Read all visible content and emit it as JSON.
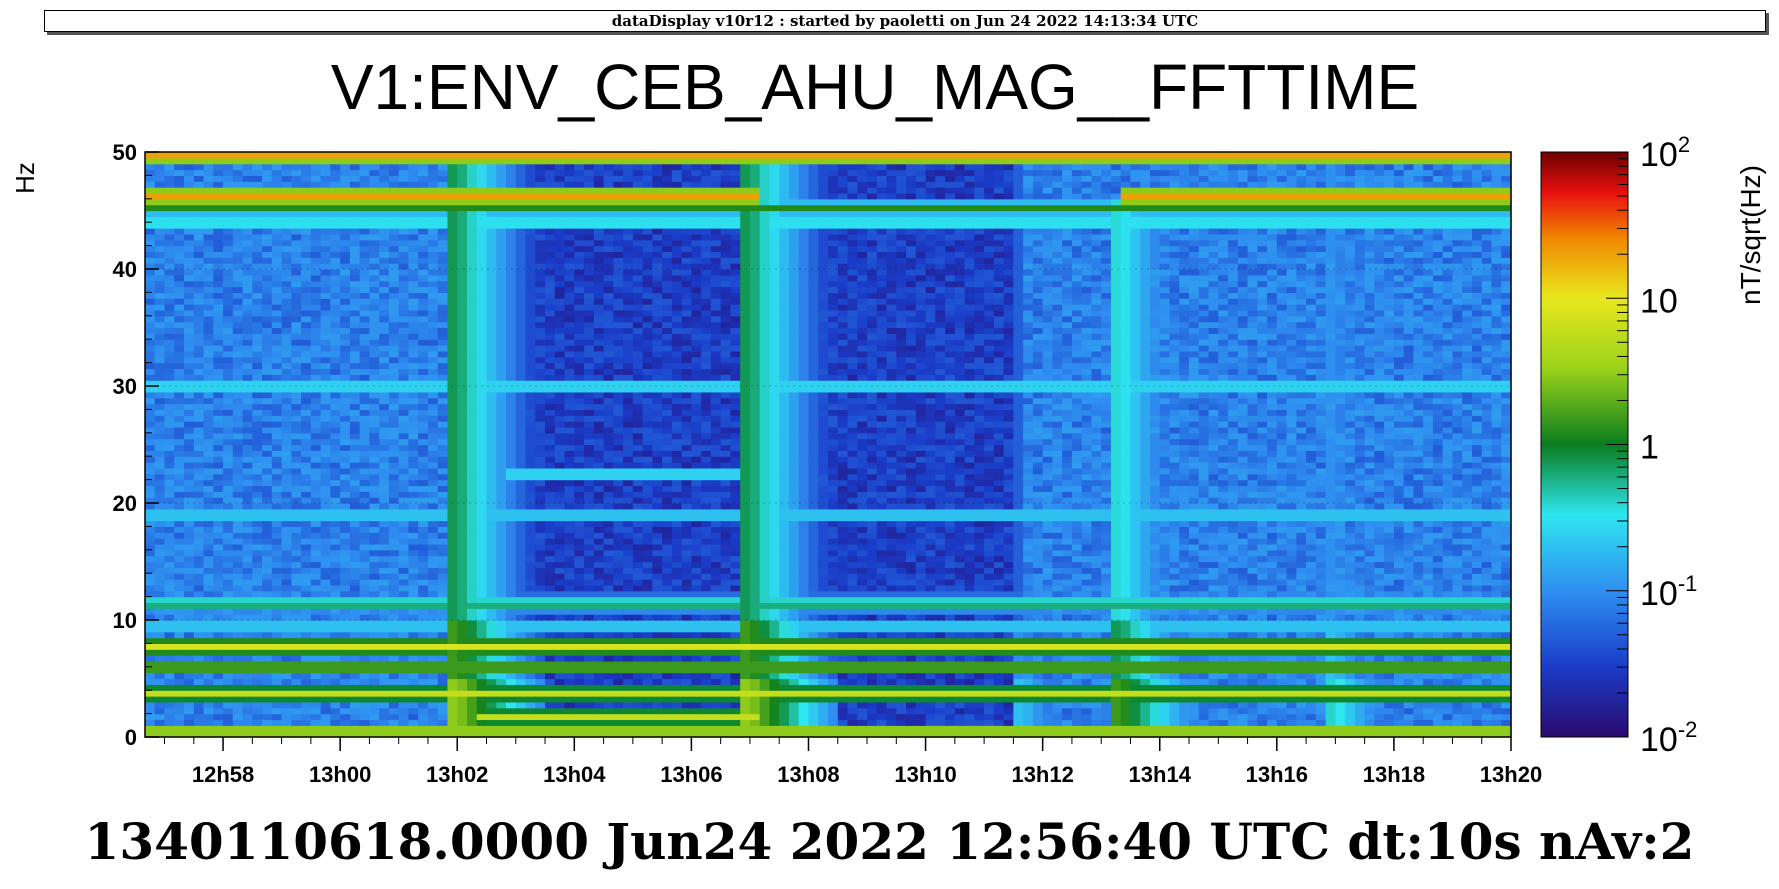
{
  "header": {
    "banner": "dataDisplay v10r12 : started by paoletti on Jun 24 2022 14:13:34 UTC"
  },
  "footer": {
    "info": "1340110618.0000 Jun24 2022 12:56:40 UTC dt:10s nAv:2"
  },
  "colors": {
    "background": "#ffffff",
    "text": "#000000",
    "palette": [
      "#2a0a6e",
      "#1a3cc8",
      "#2f8ff0",
      "#2ee6f0",
      "#0a7d1e",
      "#e8e81e",
      "#f08a00",
      "#e81010",
      "#6e0000"
    ]
  },
  "chart_data": {
    "type": "heatmap",
    "title": "V1:ENV_CEB_AHU_MAG__FFTTIME",
    "ylabel": "Hz",
    "xlabel": "",
    "zlabel": "nT/sqrt(Hz)",
    "x_ticks": [
      "12h58",
      "13h00",
      "13h02",
      "13h04",
      "13h06",
      "13h08",
      "13h10",
      "13h12",
      "13h14",
      "13h16",
      "13h18",
      "13h20"
    ],
    "y_ticks": [
      "0",
      "10",
      "20",
      "30",
      "40",
      "50"
    ],
    "y_range": [
      0,
      50
    ],
    "z_scale": "log",
    "z_range": [
      0.01,
      100
    ],
    "z_ticks": [
      {
        "base": "10",
        "exp": "-2",
        "value": 0.01
      },
      {
        "base": "10",
        "exp": "-1",
        "value": 0.1
      },
      {
        "base": "1",
        "exp": "",
        "value": 1
      },
      {
        "base": "10",
        "exp": "",
        "value": 10
      },
      {
        "base": "10",
        "exp": "2",
        "value": 100
      }
    ],
    "time_start": "12:56:40",
    "time_end": "13:19:50",
    "background_level_early": 0.08,
    "background_level_quiet": 0.03,
    "quiet_interval": [
      "13:02:00",
      "13:11:40"
    ],
    "line_features": [
      {
        "freq_hz": 49.8,
        "level": 20,
        "from": "12:56:40",
        "to": "13:19:50"
      },
      {
        "freq_hz": 46.2,
        "level": 20,
        "from": "12:56:40",
        "to": "13:07:00"
      },
      {
        "freq_hz": 45.2,
        "level": 1.2,
        "from": "12:56:40",
        "to": "13:19:50"
      },
      {
        "freq_hz": 46.2,
        "level": 20,
        "from": "13:13:20",
        "to": "13:19:50"
      },
      {
        "freq_hz": 44.0,
        "level": 0.3,
        "from": "12:56:40",
        "to": "13:19:50"
      },
      {
        "freq_hz": 30.0,
        "level": 0.25,
        "from": "12:56:40",
        "to": "13:19:50"
      },
      {
        "freq_hz": 22.5,
        "level": 0.25,
        "from": "13:02:50",
        "to": "13:06:50"
      },
      {
        "freq_hz": 19.0,
        "level": 0.2,
        "from": "12:56:40",
        "to": "13:19:50"
      },
      {
        "freq_hz": 11.8,
        "level": 0.4,
        "from": "12:56:40",
        "to": "13:19:50"
      },
      {
        "freq_hz": 11.2,
        "level": 0.6,
        "from": "12:56:40",
        "to": "13:19:50"
      },
      {
        "freq_hz": 9.5,
        "level": 0.2,
        "from": "12:56:40",
        "to": "13:19:50"
      },
      {
        "freq_hz": 7.8,
        "level": 8,
        "from": "12:56:40",
        "to": "13:19:50"
      },
      {
        "freq_hz": 5.9,
        "level": 1.5,
        "from": "12:56:40",
        "to": "13:19:50"
      },
      {
        "freq_hz": 3.8,
        "level": 6,
        "from": "12:56:40",
        "to": "13:19:50"
      },
      {
        "freq_hz": 1.8,
        "level": 6,
        "from": "13:02:20",
        "to": "13:07:00"
      },
      {
        "freq_hz": 0.5,
        "level": 3,
        "from": "12:56:40",
        "to": "13:19:50"
      }
    ],
    "broadband_events": [
      {
        "time": "13:02:00",
        "level": 3,
        "max_freq_hz": 50
      },
      {
        "time": "13:07:00",
        "level": 3,
        "max_freq_hz": 50
      },
      {
        "time": "13:11:40",
        "level": 0.2,
        "max_freq_hz": 50
      },
      {
        "time": "13:13:20",
        "level": 1.5,
        "max_freq_hz": 46
      },
      {
        "time": "13:17:00",
        "level": 0.4,
        "max_freq_hz": 50
      }
    ]
  }
}
